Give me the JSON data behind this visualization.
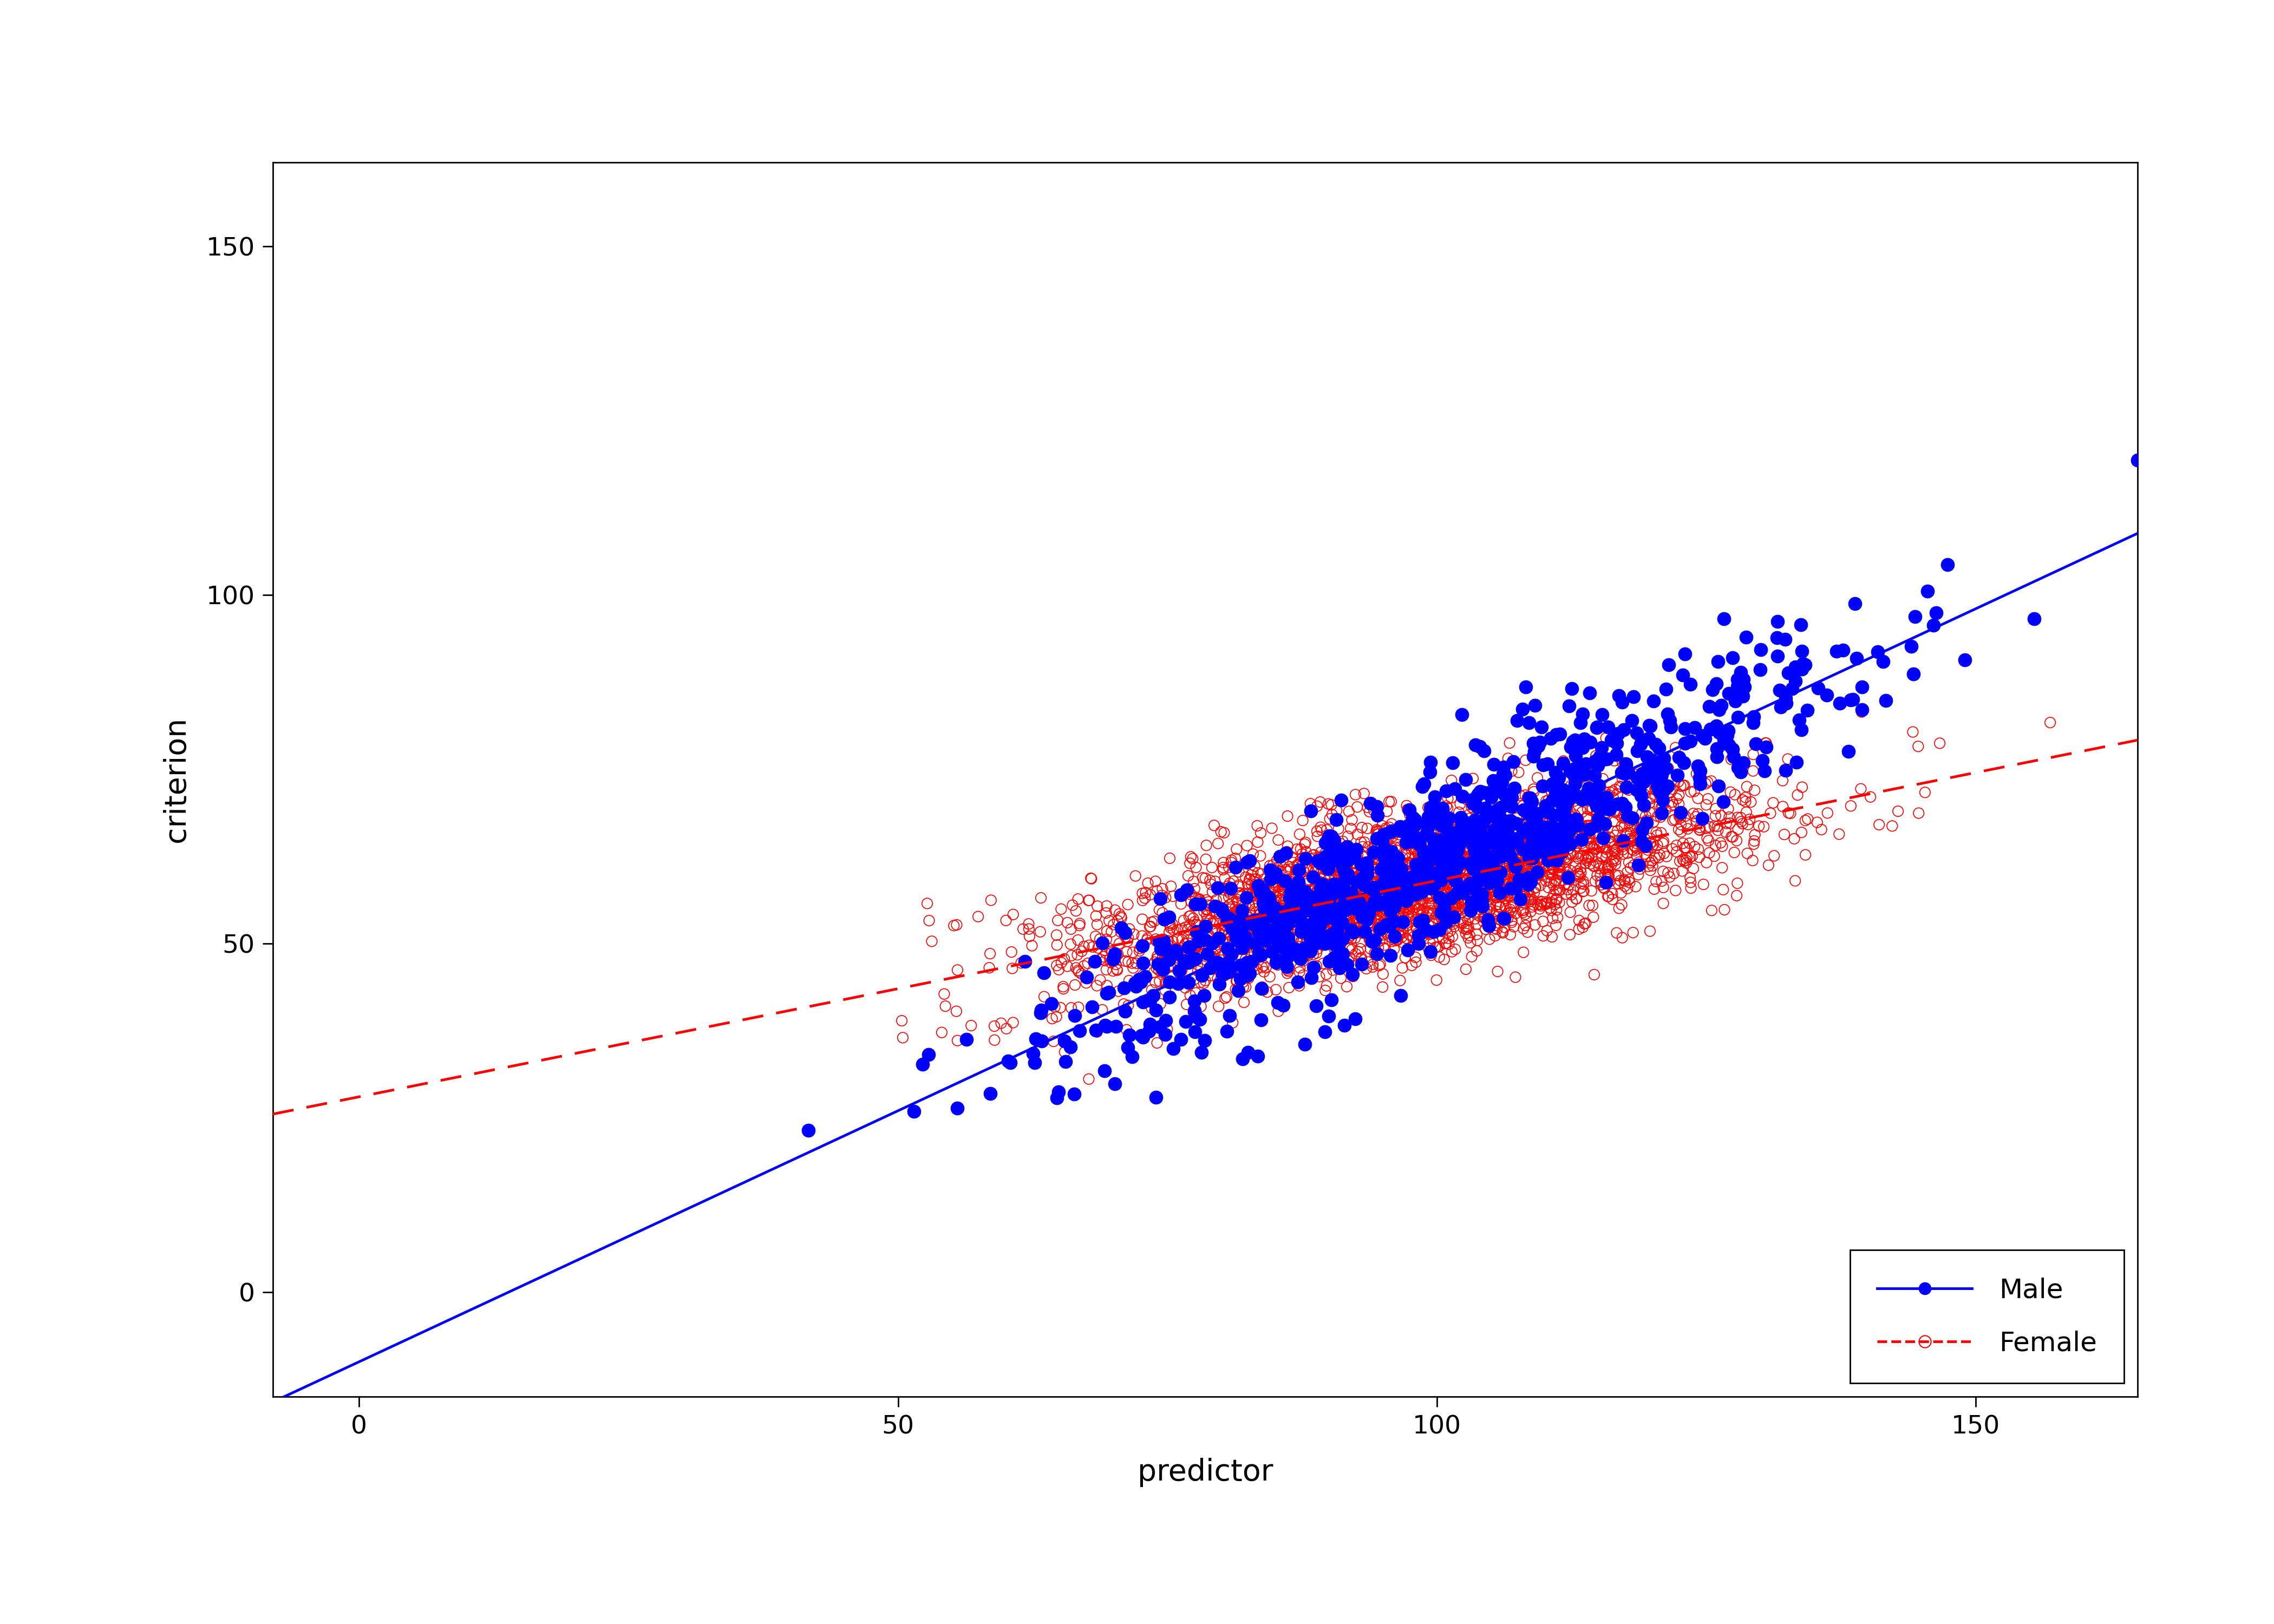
{
  "xlabel": "predictor",
  "ylabel": "criterion",
  "xlim": [
    -8,
    165
  ],
  "ylim": [
    -15,
    162
  ],
  "xticks": [
    0,
    50,
    100,
    150
  ],
  "yticks": [
    0,
    50,
    100,
    150
  ],
  "male_color": "#0000FF",
  "female_color": "#FF0000",
  "male_intercept": -10.0,
  "male_slope": 0.72,
  "female_intercept": 28.0,
  "female_slope": 0.31,
  "male_n": 1000,
  "female_n": 3000,
  "male_x_mean": 100,
  "male_x_std": 18,
  "female_x_mean": 98,
  "female_x_std": 15,
  "male_noise_std": 6,
  "female_noise_std": 5,
  "background_color": "#FFFFFF",
  "seed": 42,
  "marker_size_male": 18,
  "marker_size_female": 14,
  "marker_lw_female": 1.2,
  "line_width": 3.5,
  "legend_fontsize": 36,
  "axis_label_fontsize": 40,
  "tick_fontsize": 34
}
